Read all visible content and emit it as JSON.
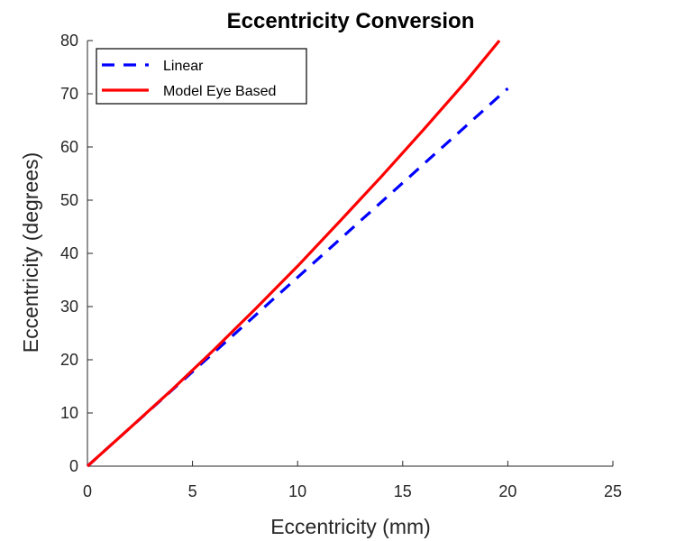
{
  "chart_data": {
    "type": "line",
    "title": "Eccentricity Conversion",
    "xlabel": "Eccentricity (mm)",
    "ylabel": "Eccentricity (degrees)",
    "xlim": [
      0,
      25
    ],
    "ylim": [
      0,
      80
    ],
    "xticks": [
      "0",
      "5",
      "10",
      "15",
      "20",
      "25"
    ],
    "yticks": [
      "0",
      "10",
      "20",
      "30",
      "40",
      "50",
      "60",
      "70",
      "80"
    ],
    "grid": false,
    "legend_position": "top-left",
    "series": [
      {
        "name": "Linear",
        "color": "#0000ff",
        "style": "dashed",
        "x": [
          0,
          20
        ],
        "y": [
          0,
          71
        ]
      },
      {
        "name": "Model Eye Based",
        "color": "#ff0000",
        "style": "solid",
        "x": [
          0,
          2,
          4,
          6,
          8,
          10,
          12,
          14,
          16,
          18,
          19.6
        ],
        "y": [
          0,
          7.1,
          14.3,
          21.8,
          29.6,
          37.6,
          46.0,
          54.5,
          63.3,
          72.3,
          80
        ]
      }
    ]
  }
}
